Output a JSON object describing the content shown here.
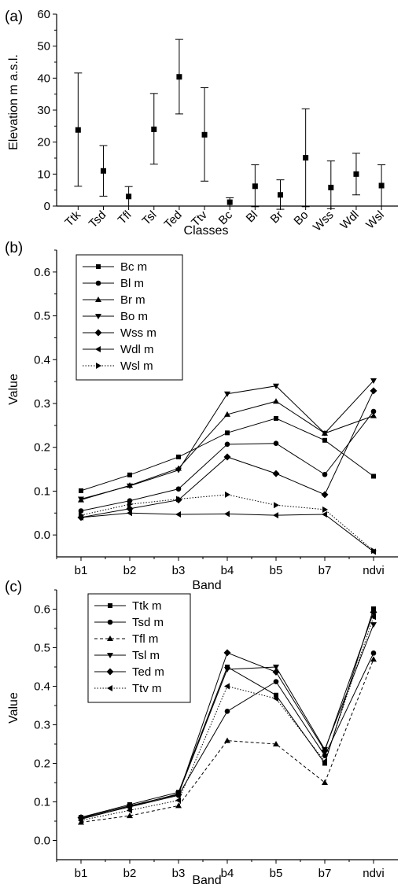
{
  "chart_data": [
    {
      "panel": "(a)",
      "type": "scatter",
      "error_bars": true,
      "xlabel": "Classes",
      "ylabel": "Elevation m a.s.l.",
      "ylim": [
        0,
        60
      ],
      "yticks": [
        0,
        10,
        20,
        30,
        40,
        50,
        60
      ],
      "categories": [
        "Ttk",
        "Tsd",
        "Tfl",
        "Tsl",
        "Ted",
        "Ttv",
        "Bc",
        "Bl",
        "Br",
        "Bo",
        "Wss",
        "Wdl",
        "Wsl"
      ],
      "values": [
        23.8,
        11.0,
        3.0,
        24.0,
        40.4,
        22.3,
        1.2,
        6.2,
        3.5,
        15.1,
        5.8,
        10.0,
        6.4
      ],
      "lower": [
        6.2,
        3.1,
        0.0,
        13.1,
        28.8,
        7.8,
        0.0,
        -0.2,
        -1.0,
        -0.2,
        -0.8,
        3.5,
        0.0
      ],
      "upper": [
        41.6,
        18.9,
        6.1,
        35.2,
        52.1,
        37.0,
        2.6,
        12.9,
        8.2,
        30.4,
        14.1,
        16.5,
        12.9
      ]
    },
    {
      "panel": "(b)",
      "type": "line",
      "xlabel": "Band",
      "ylabel": "Value",
      "ylim": [
        -0.05,
        0.65
      ],
      "yticks": [
        0.0,
        0.1,
        0.2,
        0.3,
        0.4,
        0.5,
        0.6
      ],
      "ytick_labels": [
        "0.0",
        "0.1",
        "0.2",
        "0.3",
        "0.4",
        "0.5",
        "0.6"
      ],
      "categories": [
        "b1",
        "b2",
        "b3",
        "b4",
        "b5",
        "b7",
        "ndvi"
      ],
      "legend_position": "top-left",
      "series": [
        {
          "name": "Bc m",
          "marker": "square",
          "dash": "solid",
          "values": [
            0.101,
            0.137,
            0.178,
            0.233,
            0.266,
            0.216,
            0.134
          ]
        },
        {
          "name": "Bl m",
          "marker": "circle",
          "dash": "solid",
          "values": [
            0.055,
            0.078,
            0.105,
            0.207,
            0.209,
            0.138,
            0.282
          ]
        },
        {
          "name": "Br m",
          "marker": "triangle-up",
          "dash": "solid",
          "values": [
            0.08,
            0.113,
            0.152,
            0.275,
            0.305,
            0.232,
            0.272
          ]
        },
        {
          "name": "Bo m",
          "marker": "triangle-down",
          "dash": "solid",
          "values": [
            0.082,
            0.112,
            0.148,
            0.322,
            0.34,
            0.232,
            0.352
          ]
        },
        {
          "name": "Wss m",
          "marker": "diamond",
          "dash": "solid",
          "values": [
            0.04,
            0.06,
            0.08,
            0.178,
            0.14,
            0.092,
            0.329
          ]
        },
        {
          "name": "Wdl m",
          "marker": "triangle-left",
          "dash": "solid",
          "values": [
            0.04,
            0.05,
            0.047,
            0.048,
            0.045,
            0.047,
            -0.038
          ]
        },
        {
          "name": "Wsl m",
          "marker": "triangle-right",
          "dash": "dotted",
          "values": [
            0.045,
            0.07,
            0.082,
            0.092,
            0.068,
            0.058,
            -0.036
          ]
        }
      ]
    },
    {
      "panel": "(c)",
      "type": "line",
      "xlabel": "Band",
      "ylabel": "Value",
      "ylim": [
        -0.05,
        0.65
      ],
      "yticks": [
        0.0,
        0.1,
        0.2,
        0.3,
        0.4,
        0.5,
        0.6
      ],
      "ytick_labels": [
        "0.0",
        "0.1",
        "0.2",
        "0.3",
        "0.4",
        "0.5",
        "0.6"
      ],
      "categories": [
        "b1",
        "b2",
        "b3",
        "b4",
        "b5",
        "b7",
        "ndvi"
      ],
      "legend_position": "top-left",
      "series": [
        {
          "name": "Ttk m",
          "marker": "square",
          "dash": "solid",
          "values": [
            0.06,
            0.093,
            0.125,
            0.45,
            0.377,
            0.2,
            0.601
          ]
        },
        {
          "name": "Tsd m",
          "marker": "circle",
          "dash": "solid",
          "values": [
            0.057,
            0.087,
            0.117,
            0.335,
            0.412,
            0.22,
            0.486
          ]
        },
        {
          "name": "Tfl m",
          "marker": "triangle-up",
          "dash": "dashed",
          "values": [
            0.047,
            0.064,
            0.09,
            0.259,
            0.25,
            0.15,
            0.47
          ]
        },
        {
          "name": "Tsl m",
          "marker": "triangle-down",
          "dash": "solid",
          "values": [
            0.055,
            0.088,
            0.121,
            0.444,
            0.45,
            0.236,
            0.56
          ]
        },
        {
          "name": "Ted m",
          "marker": "diamond",
          "dash": "solid",
          "values": [
            0.059,
            0.09,
            0.119,
            0.487,
            0.437,
            0.233,
            0.592
          ]
        },
        {
          "name": "Ttv m",
          "marker": "triangle-left",
          "dash": "dotted",
          "values": [
            0.052,
            0.078,
            0.104,
            0.4,
            0.368,
            0.205,
            0.58
          ]
        }
      ]
    }
  ]
}
